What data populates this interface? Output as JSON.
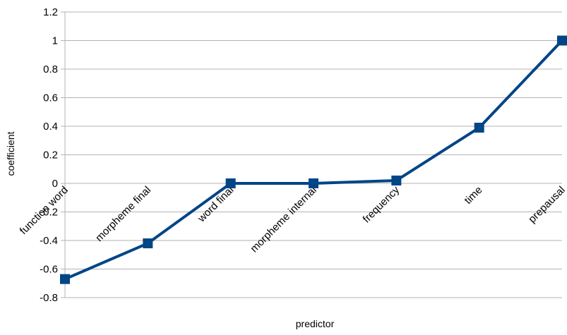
{
  "chart_data": {
    "type": "line",
    "xlabel": "predictor",
    "ylabel": "coefficient",
    "categories": [
      "function word",
      "morpheme final",
      "word final",
      "morpheme internal",
      "frequency",
      "time",
      "prepausal"
    ],
    "series": [
      {
        "values": [
          -0.67,
          -0.42,
          0.0,
          0.0,
          0.02,
          0.39,
          1.0
        ]
      }
    ],
    "ylim": [
      -0.8,
      1.2
    ],
    "yticks": [
      1.2,
      1,
      0.8,
      0.6,
      0.4,
      0.2,
      0,
      -0.2,
      -0.4,
      -0.6,
      -0.8
    ],
    "ytick_labels": [
      "1.2",
      "1",
      "0.8",
      "0.6",
      "0.4",
      "0.2",
      "0",
      "-0.2",
      "-0.4",
      "-0.6",
      "-0.8"
    ],
    "grid": "horizontal",
    "legend": "none",
    "colors": {
      "series": "#004586",
      "grid": "#b3b3b3",
      "axis": "#b3b3b3"
    }
  }
}
